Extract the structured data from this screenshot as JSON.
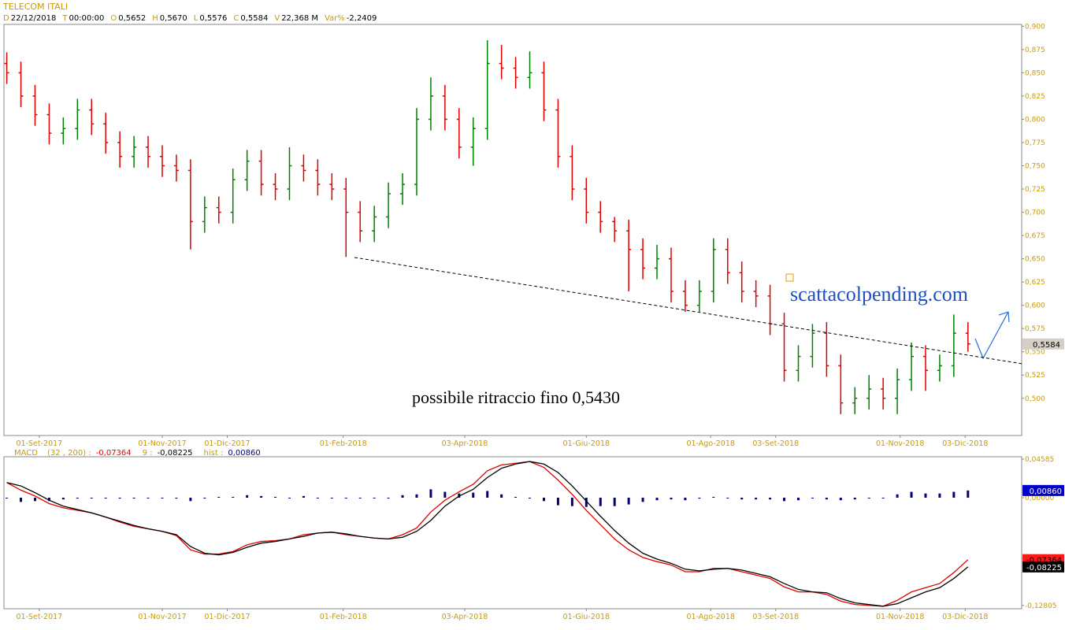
{
  "header": {
    "symbol": "TELECOM ITALI",
    "fields": [
      {
        "label": "D",
        "value": "22/12/2018"
      },
      {
        "label": "T",
        "value": "00:00:00"
      },
      {
        "label": "O",
        "value": "0,5652"
      },
      {
        "label": "H",
        "value": "0,5670"
      },
      {
        "label": "L",
        "value": "0,5576"
      },
      {
        "label": "C",
        "value": "0,5584"
      },
      {
        "label": "V",
        "value": "22,368 M"
      },
      {
        "label": "Var%",
        "value": "-2,2409"
      }
    ]
  },
  "chart_data": [
    {
      "type": "ohlc",
      "up_color": "#008000",
      "down_color": "#e00000",
      "x": [
        1,
        6,
        11,
        16,
        21,
        26,
        31,
        36,
        41,
        46,
        51,
        56,
        61,
        66,
        71,
        76,
        81,
        86,
        91,
        96,
        101,
        106,
        111,
        116,
        121,
        126,
        131,
        136,
        141,
        146,
        151,
        156,
        161,
        166,
        171,
        176,
        181,
        186,
        191,
        196,
        201,
        206,
        211,
        216,
        221,
        226,
        231,
        236,
        241,
        246,
        251,
        256,
        261,
        266,
        271,
        276,
        281,
        286,
        291,
        296,
        301,
        306,
        311,
        316,
        321,
        326,
        331,
        336,
        341
      ],
      "values": [
        [
          0.86,
          0.872,
          0.838,
          0.85
        ],
        [
          0.85,
          0.862,
          0.813,
          0.825
        ],
        [
          0.825,
          0.837,
          0.793,
          0.805
        ],
        [
          0.805,
          0.817,
          0.773,
          0.785
        ],
        [
          0.785,
          0.802,
          0.773,
          0.79
        ],
        [
          0.79,
          0.822,
          0.778,
          0.81
        ],
        [
          0.81,
          0.822,
          0.783,
          0.795
        ],
        [
          0.795,
          0.807,
          0.763,
          0.775
        ],
        [
          0.775,
          0.787,
          0.748,
          0.76
        ],
        [
          0.76,
          0.782,
          0.748,
          0.77
        ],
        [
          0.77,
          0.782,
          0.748,
          0.76
        ],
        [
          0.76,
          0.772,
          0.738,
          0.75
        ],
        [
          0.75,
          0.762,
          0.733,
          0.745
        ],
        [
          0.745,
          0.757,
          0.66,
          0.69
        ],
        [
          0.69,
          0.717,
          0.678,
          0.705
        ],
        [
          0.705,
          0.717,
          0.688,
          0.7
        ],
        [
          0.7,
          0.747,
          0.688,
          0.735
        ],
        [
          0.735,
          0.767,
          0.723,
          0.755
        ],
        [
          0.755,
          0.767,
          0.718,
          0.73
        ],
        [
          0.73,
          0.742,
          0.713,
          0.725
        ],
        [
          0.725,
          0.77,
          0.713,
          0.75
        ],
        [
          0.75,
          0.762,
          0.733,
          0.745
        ],
        [
          0.745,
          0.757,
          0.718,
          0.73
        ],
        [
          0.73,
          0.742,
          0.713,
          0.725
        ],
        [
          0.725,
          0.737,
          0.652,
          0.7
        ],
        [
          0.7,
          0.712,
          0.668,
          0.68
        ],
        [
          0.68,
          0.707,
          0.668,
          0.695
        ],
        [
          0.695,
          0.732,
          0.683,
          0.72
        ],
        [
          0.72,
          0.742,
          0.708,
          0.73
        ],
        [
          0.73,
          0.812,
          0.718,
          0.8
        ],
        [
          0.8,
          0.845,
          0.788,
          0.825
        ],
        [
          0.825,
          0.837,
          0.788,
          0.8
        ],
        [
          0.8,
          0.812,
          0.758,
          0.77
        ],
        [
          0.77,
          0.802,
          0.75,
          0.79
        ],
        [
          0.79,
          0.885,
          0.778,
          0.86
        ],
        [
          0.86,
          0.88,
          0.843,
          0.855
        ],
        [
          0.855,
          0.867,
          0.833,
          0.845
        ],
        [
          0.845,
          0.873,
          0.833,
          0.85
        ],
        [
          0.85,
          0.862,
          0.798,
          0.81
        ],
        [
          0.81,
          0.822,
          0.748,
          0.76
        ],
        [
          0.76,
          0.772,
          0.713,
          0.725
        ],
        [
          0.725,
          0.737,
          0.688,
          0.7
        ],
        [
          0.7,
          0.712,
          0.678,
          0.69
        ],
        [
          0.69,
          0.695,
          0.668,
          0.68
        ],
        [
          0.68,
          0.692,
          0.615,
          0.66
        ],
        [
          0.66,
          0.672,
          0.628,
          0.64
        ],
        [
          0.64,
          0.665,
          0.628,
          0.65
        ],
        [
          0.65,
          0.662,
          0.603,
          0.615
        ],
        [
          0.615,
          0.627,
          0.593,
          0.6
        ],
        [
          0.6,
          0.627,
          0.593,
          0.615
        ],
        [
          0.615,
          0.672,
          0.603,
          0.66
        ],
        [
          0.66,
          0.672,
          0.623,
          0.635
        ],
        [
          0.635,
          0.647,
          0.603,
          0.615
        ],
        [
          0.615,
          0.627,
          0.598,
          0.61
        ],
        [
          0.61,
          0.622,
          0.568,
          0.58
        ],
        [
          0.58,
          0.592,
          0.518,
          0.53
        ],
        [
          0.53,
          0.557,
          0.518,
          0.545
        ],
        [
          0.545,
          0.58,
          0.533,
          0.57
        ],
        [
          0.57,
          0.582,
          0.523,
          0.535
        ],
        [
          0.535,
          0.547,
          0.483,
          0.495
        ],
        [
          0.495,
          0.512,
          0.483,
          0.5
        ],
        [
          0.5,
          0.525,
          0.488,
          0.51
        ],
        [
          0.51,
          0.522,
          0.488,
          0.5
        ],
        [
          0.5,
          0.532,
          0.483,
          0.52
        ],
        [
          0.52,
          0.56,
          0.508,
          0.545
        ],
        [
          0.545,
          0.557,
          0.508,
          0.53
        ],
        [
          0.53,
          0.547,
          0.518,
          0.535
        ],
        [
          0.535,
          0.59,
          0.523,
          0.57
        ],
        [
          0.57,
          0.582,
          0.55,
          0.5584
        ]
      ],
      "xlim": [
        0,
        360
      ],
      "xticks": [
        {
          "value": 12.5,
          "label": "01-Set-2017"
        },
        {
          "value": 56,
          "label": "01-Nov-2017"
        },
        {
          "value": 79,
          "label": "01-Dic-2017"
        },
        {
          "value": 120,
          "label": "01-Feb-2018"
        },
        {
          "value": 163,
          "label": "03-Apr-2018"
        },
        {
          "value": 206,
          "label": "01-Giu-2018"
        },
        {
          "value": 250,
          "label": "01-Ago-2018"
        },
        {
          "value": 273,
          "label": "03-Set-2018"
        },
        {
          "value": 317,
          "label": "01-Nov-2018"
        },
        {
          "value": 340,
          "label": "03-Dic-2018"
        }
      ],
      "ylim": [
        0.46,
        0.902
      ],
      "yticks": [
        {
          "value": 0.5,
          "label": "0,500"
        },
        {
          "value": 0.525,
          "label": "0,525"
        },
        {
          "value": 0.55,
          "label": "0,550"
        },
        {
          "value": 0.575,
          "label": "0,575"
        },
        {
          "value": 0.6,
          "label": "0,600"
        },
        {
          "value": 0.625,
          "label": "0,625"
        },
        {
          "value": 0.65,
          "label": "0,650"
        },
        {
          "value": 0.675,
          "label": "0,675"
        },
        {
          "value": 0.7,
          "label": "0,700"
        },
        {
          "value": 0.725,
          "label": "0,725"
        },
        {
          "value": 0.75,
          "label": "0,750"
        },
        {
          "value": 0.775,
          "label": "0,775"
        },
        {
          "value": 0.8,
          "label": "0,800"
        },
        {
          "value": 0.825,
          "label": "0,825"
        },
        {
          "value": 0.85,
          "label": "0,850"
        },
        {
          "value": 0.875,
          "label": "0,875"
        },
        {
          "value": 0.9,
          "label": "0,900"
        }
      ],
      "trendline": {
        "x": [
          124,
          360
        ],
        "y": [
          0.6514,
          0.5372
        ]
      },
      "last_price": {
        "value": 0.5584,
        "label": "0,5584"
      },
      "annotations": [
        "possibile ritraccio fino 0,5430",
        "scattacolpending.com"
      ]
    },
    {
      "type": "macd",
      "label": "MACD",
      "x": [
        1,
        6,
        11,
        16,
        21,
        26,
        31,
        36,
        41,
        46,
        51,
        56,
        61,
        66,
        71,
        76,
        81,
        86,
        91,
        96,
        101,
        106,
        111,
        116,
        121,
        126,
        131,
        136,
        141,
        146,
        151,
        156,
        161,
        166,
        171,
        176,
        181,
        186,
        191,
        196,
        201,
        206,
        211,
        216,
        221,
        226,
        231,
        236,
        241,
        246,
        251,
        256,
        261,
        266,
        271,
        276,
        281,
        286,
        291,
        296,
        301,
        306,
        311,
        316,
        321,
        326,
        331,
        336,
        341
      ],
      "series": [
        {
          "name": "(32 , 200) :",
          "kind": "line",
          "color": "#e00000",
          "last_label": "-0,07364",
          "values": [
            0.018,
            0.009,
            0.002,
            -0.007,
            -0.012,
            -0.015,
            -0.018,
            -0.023,
            -0.029,
            -0.034,
            -0.037,
            -0.04,
            -0.045,
            -0.062,
            -0.067,
            -0.067,
            -0.064,
            -0.056,
            -0.052,
            -0.051,
            -0.049,
            -0.044,
            -0.042,
            -0.041,
            -0.044,
            -0.046,
            -0.048,
            -0.049,
            -0.044,
            -0.036,
            -0.017,
            -0.003,
            0.007,
            0.016,
            0.032,
            0.039,
            0.041,
            0.043,
            0.036,
            0.021,
            0.004,
            -0.015,
            -0.032,
            -0.049,
            -0.062,
            -0.071,
            -0.076,
            -0.08,
            -0.088,
            -0.088,
            -0.084,
            -0.084,
            -0.088,
            -0.092,
            -0.096,
            -0.106,
            -0.112,
            -0.112,
            -0.115,
            -0.123,
            -0.127,
            -0.128,
            -0.129,
            -0.122,
            -0.112,
            -0.107,
            -0.102,
            -0.089,
            -0.07364
          ]
        },
        {
          "name": "9 :",
          "kind": "line",
          "color": "#000000",
          "last_label": "-0,08225",
          "values": [
            0.018,
            0.014,
            0.006,
            -0.003,
            -0.01,
            -0.014,
            -0.018,
            -0.023,
            -0.028,
            -0.033,
            -0.037,
            -0.04,
            -0.044,
            -0.058,
            -0.066,
            -0.068,
            -0.065,
            -0.059,
            -0.054,
            -0.052,
            -0.049,
            -0.046,
            -0.042,
            -0.041,
            -0.043,
            -0.046,
            -0.048,
            -0.049,
            -0.047,
            -0.04,
            -0.027,
            -0.01,
            0.002,
            0.01,
            0.024,
            0.035,
            0.04,
            0.043,
            0.04,
            0.03,
            0.014,
            -0.004,
            -0.022,
            -0.039,
            -0.054,
            -0.066,
            -0.073,
            -0.078,
            -0.085,
            -0.087,
            -0.085,
            -0.084,
            -0.086,
            -0.09,
            -0.094,
            -0.102,
            -0.109,
            -0.112,
            -0.113,
            -0.12,
            -0.125,
            -0.127,
            -0.129,
            -0.126,
            -0.119,
            -0.112,
            -0.107,
            -0.096,
            -0.08225
          ]
        },
        {
          "name": "hist :",
          "kind": "histogram",
          "color": "#000080",
          "last_label": "0,00860",
          "values": [
            0,
            -0.005,
            -0.004,
            -0.004,
            -0.002,
            -0.001,
            0,
            0,
            -0.001,
            -0.001,
            0,
            0,
            -0.001,
            -0.004,
            -0.001,
            0.001,
            0.001,
            0.003,
            0.002,
            0.001,
            0,
            0.002,
            0,
            0,
            -0.001,
            0,
            0,
            0,
            0.003,
            0.004,
            0.01,
            0.007,
            0.005,
            0.006,
            0.008,
            0.004,
            0.001,
            0,
            -0.004,
            -0.009,
            -0.01,
            -0.011,
            -0.01,
            -0.01,
            -0.008,
            -0.005,
            -0.003,
            -0.002,
            -0.003,
            -0.001,
            0.001,
            0,
            -0.002,
            -0.002,
            -0.002,
            -0.004,
            -0.003,
            0,
            -0.002,
            -0.003,
            -0.002,
            -0.001,
            0,
            0.004,
            0.007,
            0.005,
            0.005,
            0.007,
            0.0086
          ]
        }
      ],
      "xlim": [
        0,
        360
      ],
      "xticks": [
        {
          "value": 12.5,
          "label": "01-Set-2017"
        },
        {
          "value": 56,
          "label": "01-Nov-2017"
        },
        {
          "value": 79,
          "label": "01-Dic-2017"
        },
        {
          "value": 120,
          "label": "01-Feb-2018"
        },
        {
          "value": 163,
          "label": "03-Apr-2018"
        },
        {
          "value": 206,
          "label": "01-Giu-2018"
        },
        {
          "value": 250,
          "label": "01-Ago-2018"
        },
        {
          "value": 273,
          "label": "03-Set-2018"
        },
        {
          "value": 317,
          "label": "01-Nov-2018"
        },
        {
          "value": 340,
          "label": "03-Dic-2018"
        }
      ],
      "ylim": [
        -0.132,
        0.0487
      ],
      "yticks": [
        {
          "value": 0.04585,
          "label": "0,04585"
        },
        {
          "value": 0,
          "label": "0,00000"
        },
        {
          "value": -0.12805,
          "label": "-0,12805"
        }
      ]
    }
  ]
}
